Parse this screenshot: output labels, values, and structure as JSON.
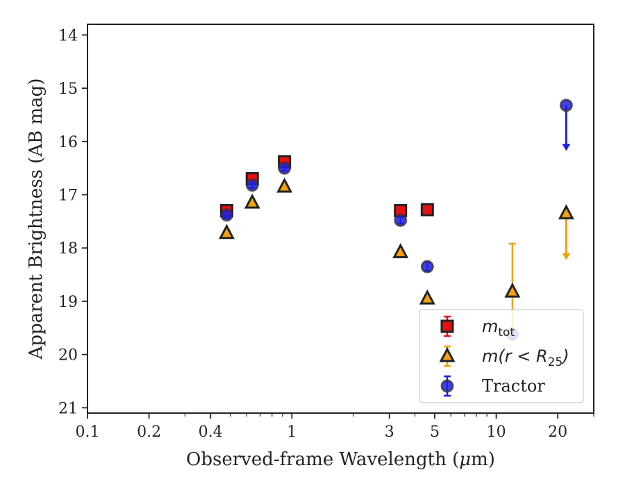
{
  "chart_data": {
    "type": "scatter",
    "xscale": "log",
    "xlim": [
      0.1,
      30
    ],
    "ylim": [
      21.1,
      13.8
    ],
    "y_inverted": true,
    "xlabel": "Observed-frame Wavelength (",
    "xlabel_mu": "μ",
    "xlabel_tail": "m)",
    "ylabel": "Apparent Brightness (AB mag)",
    "x_ticks": [
      {
        "value": 0.1,
        "label": "0.1"
      },
      {
        "value": 0.2,
        "label": "0.2"
      },
      {
        "value": 0.4,
        "label": "0.4"
      },
      {
        "value": 1,
        "label": "1"
      },
      {
        "value": 3,
        "label": "3"
      },
      {
        "value": 5,
        "label": "5"
      },
      {
        "value": 10,
        "label": "10"
      },
      {
        "value": 20,
        "label": "20"
      }
    ],
    "x_minor_ticks": [
      0.3,
      0.5,
      0.6,
      0.7,
      0.8,
      0.9,
      2,
      4,
      6,
      7,
      8,
      9,
      30
    ],
    "y_ticks": [
      {
        "value": 14,
        "label": "14"
      },
      {
        "value": 15,
        "label": "15"
      },
      {
        "value": 16,
        "label": "16"
      },
      {
        "value": 17,
        "label": "17"
      },
      {
        "value": 18,
        "label": "18"
      },
      {
        "value": 19,
        "label": "19"
      },
      {
        "value": 20,
        "label": "20"
      },
      {
        "value": 21,
        "label": "21"
      }
    ],
    "legend_position": "lower-right",
    "series": [
      {
        "key": "tractor",
        "name": "Tractor",
        "marker": "circle",
        "color": "#1f1fe6",
        "edge": "#333333",
        "points": [
          {
            "x": 0.48,
            "y": 17.38,
            "err": 0.06
          },
          {
            "x": 0.64,
            "y": 16.82,
            "err": 0.05
          },
          {
            "x": 0.92,
            "y": 16.5,
            "err": 0.05
          },
          {
            "x": 3.4,
            "y": 17.48,
            "err": 0.06
          },
          {
            "x": 4.6,
            "y": 18.35,
            "err": 0.08
          },
          {
            "x": 12.0,
            "y": 19.62,
            "err": 0.0
          },
          {
            "x": 22.0,
            "y": 15.32,
            "upper_limit_to": 16.15
          }
        ]
      },
      {
        "key": "mtot",
        "name_base": "m",
        "name_sub": "tot",
        "marker": "square",
        "color": "#e81010",
        "edge": "#222222",
        "points": [
          {
            "x": 0.48,
            "y": 17.3,
            "err": 0.05
          },
          {
            "x": 0.64,
            "y": 16.7,
            "err": 0.05
          },
          {
            "x": 0.92,
            "y": 16.38,
            "err": 0.05
          },
          {
            "x": 3.4,
            "y": 17.3,
            "err": 0.05
          },
          {
            "x": 4.6,
            "y": 17.28,
            "err": 0.05
          }
        ]
      },
      {
        "key": "mr25",
        "name_prefix": "m(r < R",
        "name_sub": "25",
        "name_suffix": ")",
        "marker": "triangle",
        "color": "#f5a20a",
        "edge": "#222222",
        "points": [
          {
            "x": 0.48,
            "y": 17.72,
            "err": 0.0
          },
          {
            "x": 0.64,
            "y": 17.15,
            "err": 0.0
          },
          {
            "x": 0.92,
            "y": 16.85,
            "err": 0.0
          },
          {
            "x": 3.4,
            "y": 18.08,
            "err": 0.0
          },
          {
            "x": 4.6,
            "y": 18.95,
            "err": 0.0
          },
          {
            "x": 12.0,
            "y": 18.82,
            "err_low": 17.92,
            "err_high": 19.7
          },
          {
            "x": 22.0,
            "y": 17.35,
            "upper_limit_to": 18.2
          }
        ]
      }
    ],
    "legend_order": [
      "mtot",
      "mr25",
      "tractor"
    ]
  }
}
